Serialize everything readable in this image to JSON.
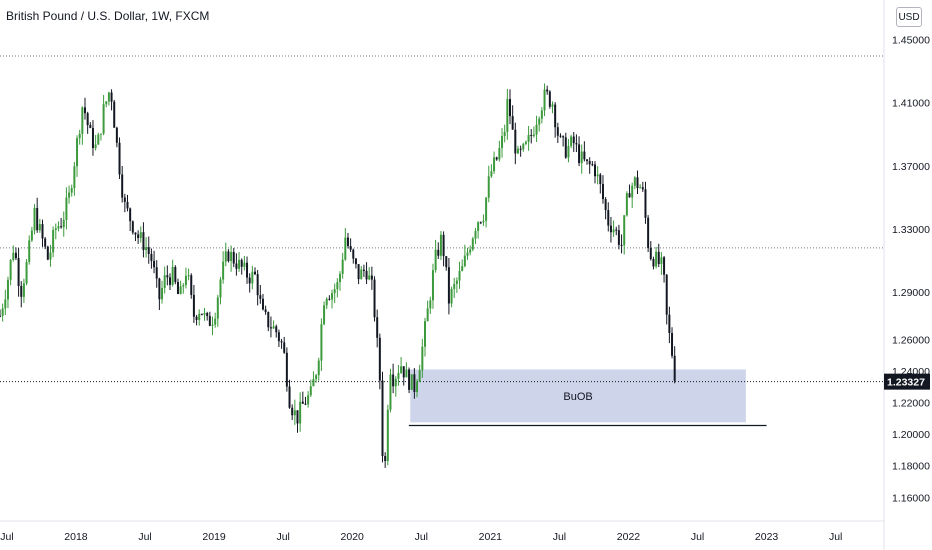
{
  "chart_data": {
    "type": "candlestick",
    "title": "British Pound / U.S. Dollar, 1W, FXCM",
    "currency_label": "USD",
    "x_tick_labels": [
      "Jul",
      "2018",
      "Jul",
      "2019",
      "Jul",
      "2020",
      "Jul",
      "2021",
      "Jul",
      "2022",
      "Jul",
      "2023",
      "Jul"
    ],
    "x_tick_dates": [
      2017.5,
      2018.0,
      2018.5,
      2019.0,
      2019.5,
      2020.0,
      2020.5,
      2021.0,
      2021.5,
      2022.0,
      2022.5,
      2023.0,
      2023.5
    ],
    "x_range": [
      2017.45,
      2023.85
    ],
    "y_ticks": [
      1.45,
      1.41,
      1.37,
      1.33,
      1.29,
      1.26,
      1.24,
      1.22,
      1.2,
      1.18,
      1.16
    ],
    "y_tick_labels": [
      "1.45000",
      "1.41000",
      "1.37000",
      "1.33000",
      "1.29000",
      "1.26000",
      "1.24000",
      "1.22000",
      "1.20000",
      "1.18000",
      "1.16000"
    ],
    "y_range": [
      1.145,
      1.475
    ],
    "last_price": 1.23327,
    "last_price_label": "1.23327",
    "horizontal_lines": [
      {
        "name": "dotted-resistance",
        "price": 1.4395,
        "style": "dotted"
      },
      {
        "name": "dotted-support",
        "price": 1.318,
        "style": "dotted"
      },
      {
        "name": "last-price-line",
        "price": 1.23327,
        "style": "dotted"
      }
    ],
    "solid_line": {
      "from_date": 2020.41,
      "to_date": 2023.0,
      "price": 1.2055
    },
    "zone": {
      "label": "BuOB",
      "from_date": 2020.42,
      "to_date": 2022.85,
      "price_top": 1.241,
      "price_bottom": 1.2075
    },
    "up_color": "#3c9a3c",
    "down_color": "#131722",
    "zone_fill": "#c5cde6",
    "price_path": [
      [
        2017.45,
        1.275
      ],
      [
        2017.5,
        1.295
      ],
      [
        2017.55,
        1.32
      ],
      [
        2017.6,
        1.29
      ],
      [
        2017.65,
        1.31
      ],
      [
        2017.7,
        1.34
      ],
      [
        2017.75,
        1.325
      ],
      [
        2017.8,
        1.31
      ],
      [
        2017.85,
        1.33
      ],
      [
        2017.9,
        1.335
      ],
      [
        2017.95,
        1.35
      ],
      [
        2018.0,
        1.38
      ],
      [
        2018.05,
        1.41
      ],
      [
        2018.1,
        1.39
      ],
      [
        2018.15,
        1.38
      ],
      [
        2018.2,
        1.405
      ],
      [
        2018.25,
        1.42
      ],
      [
        2018.3,
        1.38
      ],
      [
        2018.35,
        1.345
      ],
      [
        2018.4,
        1.335
      ],
      [
        2018.45,
        1.325
      ],
      [
        2018.5,
        1.32
      ],
      [
        2018.55,
        1.31
      ],
      [
        2018.6,
        1.285
      ],
      [
        2018.65,
        1.3
      ],
      [
        2018.7,
        1.3
      ],
      [
        2018.75,
        1.285
      ],
      [
        2018.8,
        1.305
      ],
      [
        2018.85,
        1.275
      ],
      [
        2018.9,
        1.28
      ],
      [
        2018.95,
        1.27
      ],
      [
        2019.0,
        1.275
      ],
      [
        2019.05,
        1.3
      ],
      [
        2019.1,
        1.315
      ],
      [
        2019.15,
        1.31
      ],
      [
        2019.2,
        1.305
      ],
      [
        2019.25,
        1.3
      ],
      [
        2019.3,
        1.3
      ],
      [
        2019.35,
        1.275
      ],
      [
        2019.4,
        1.27
      ],
      [
        2019.45,
        1.265
      ],
      [
        2019.5,
        1.255
      ],
      [
        2019.55,
        1.22
      ],
      [
        2019.6,
        1.21
      ],
      [
        2019.65,
        1.22
      ],
      [
        2019.7,
        1.225
      ],
      [
        2019.75,
        1.245
      ],
      [
        2019.8,
        1.29
      ],
      [
        2019.85,
        1.29
      ],
      [
        2019.9,
        1.295
      ],
      [
        2019.95,
        1.325
      ],
      [
        2020.0,
        1.31
      ],
      [
        2020.05,
        1.3
      ],
      [
        2020.1,
        1.305
      ],
      [
        2020.15,
        1.29
      ],
      [
        2020.2,
        1.235
      ],
      [
        2020.23,
        1.165
      ],
      [
        2020.27,
        1.245
      ],
      [
        2020.3,
        1.235
      ],
      [
        2020.35,
        1.245
      ],
      [
        2020.4,
        1.235
      ],
      [
        2020.45,
        1.23
      ],
      [
        2020.5,
        1.25
      ],
      [
        2020.55,
        1.28
      ],
      [
        2020.6,
        1.31
      ],
      [
        2020.65,
        1.325
      ],
      [
        2020.7,
        1.285
      ],
      [
        2020.75,
        1.295
      ],
      [
        2020.8,
        1.305
      ],
      [
        2020.85,
        1.32
      ],
      [
        2020.9,
        1.335
      ],
      [
        2020.95,
        1.34
      ],
      [
        2021.0,
        1.365
      ],
      [
        2021.05,
        1.375
      ],
      [
        2021.1,
        1.39
      ],
      [
        2021.13,
        1.415
      ],
      [
        2021.15,
        1.395
      ],
      [
        2021.2,
        1.375
      ],
      [
        2021.25,
        1.38
      ],
      [
        2021.3,
        1.39
      ],
      [
        2021.35,
        1.405
      ],
      [
        2021.4,
        1.415
      ],
      [
        2021.45,
        1.41
      ],
      [
        2021.5,
        1.385
      ],
      [
        2021.55,
        1.38
      ],
      [
        2021.6,
        1.385
      ],
      [
        2021.65,
        1.375
      ],
      [
        2021.7,
        1.37
      ],
      [
        2021.75,
        1.37
      ],
      [
        2021.8,
        1.355
      ],
      [
        2021.85,
        1.335
      ],
      [
        2021.9,
        1.33
      ],
      [
        2021.95,
        1.32
      ],
      [
        2022.0,
        1.355
      ],
      [
        2022.05,
        1.36
      ],
      [
        2022.1,
        1.355
      ],
      [
        2022.15,
        1.315
      ],
      [
        2022.2,
        1.31
      ],
      [
        2022.25,
        1.305
      ],
      [
        2022.28,
        1.27
      ],
      [
        2022.31,
        1.255
      ],
      [
        2022.34,
        1.235
      ]
    ]
  }
}
